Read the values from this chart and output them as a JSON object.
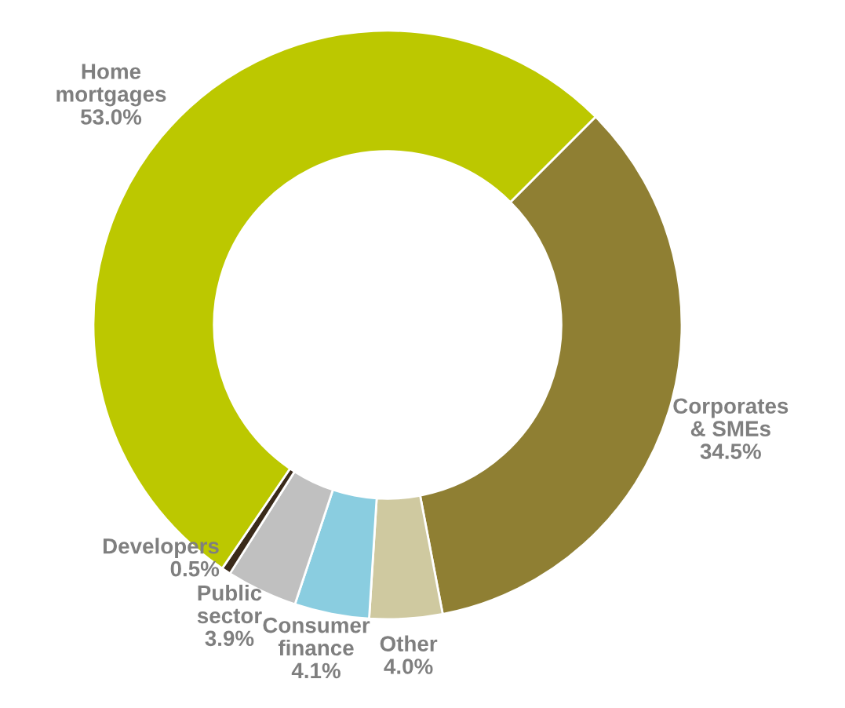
{
  "chart_data": {
    "type": "donut",
    "categories": [
      "Corporates\n& SMEs",
      "Other",
      "Consumer\nfinance",
      "Public\nsector",
      "Developers",
      "Home\nmortgages"
    ],
    "values": [
      34.5,
      4.0,
      4.1,
      3.9,
      0.5,
      53.0
    ],
    "colors": [
      "#8f7f33",
      "#cfc9a0",
      "#8acde0",
      "#c0c0c0",
      "#3a2a1a",
      "#bcc800"
    ],
    "value_labels": [
      "34.5%",
      "4.0%",
      "4.1%",
      "3.9%",
      "0.5%",
      "53.0%"
    ]
  }
}
